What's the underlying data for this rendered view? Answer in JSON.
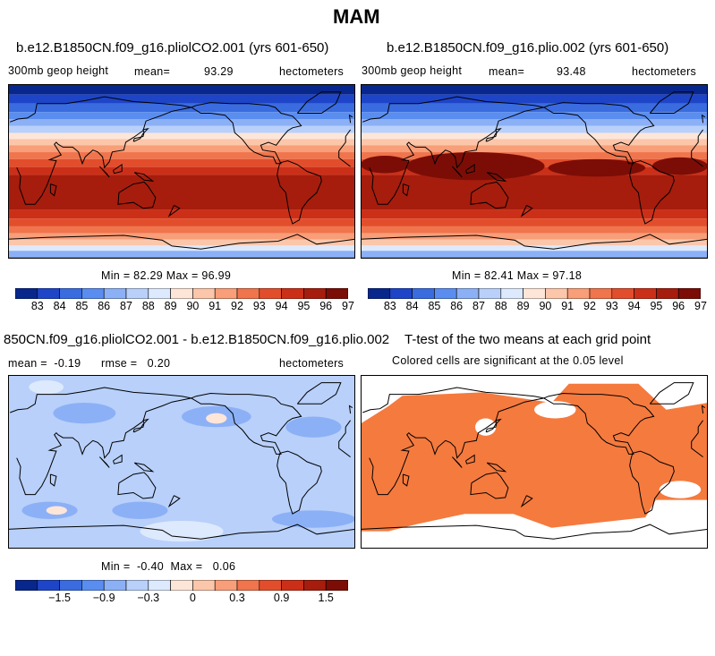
{
  "figure": {
    "title": "MAM"
  },
  "colors": {
    "ramp": [
      "#08278c",
      "#1e45c8",
      "#3a6ce0",
      "#5a8df0",
      "#8cb0f6",
      "#b8d0fa",
      "#dde9fc",
      "#fde6d8",
      "#fcc6aa",
      "#f89e78",
      "#f0744c",
      "#e24e2c",
      "#cc2f18",
      "#a61d0d",
      "#7c0d06"
    ],
    "land": "none",
    "coast": "#000000",
    "signif": "#f57a3e"
  },
  "panels": [
    {
      "title": "b.e12.B1850CN.f09_g16.pliolCO2.001 (yrs 601-650)",
      "variable": "300mb geop height",
      "mean_label": "mean=",
      "mean_value": "93.29",
      "units": "hectometers",
      "minmax": "Min =  82.29  Max =  96.99"
    },
    {
      "title": "b.e12.B1850CN.f09_g16.plio.002 (yrs 601-650)",
      "variable": "300mb geop height",
      "mean_label": "mean=",
      "mean_value": "93.48",
      "units": "hectometers",
      "minmax": "Min =  82.41  Max =  97.18"
    },
    {
      "title": "850CN.f09_g16.pliolCO2.001 - b.e12.B1850CN.f09_g16.plio.002",
      "stat_line": "mean =  -0.19      rmse =   0.20",
      "units": "hectometers",
      "minmax": "Min =  -0.40  Max =   0.06"
    },
    {
      "title": "T-test of the two means at each grid point",
      "subtitle": "Colored cells are significant at the 0.05 level"
    }
  ],
  "chart_data": [
    {
      "type": "heatmap",
      "panel": "upper-left",
      "field": "300mb geopotential height",
      "units": "hectometers",
      "mean": 93.29,
      "min": 82.29,
      "max": 96.99,
      "colorbar_ticks": [
        "83",
        "84",
        "85",
        "86",
        "87",
        "88",
        "89",
        "90",
        "91",
        "92",
        "93",
        "94",
        "95",
        "96",
        "97"
      ],
      "levels": [
        83,
        84,
        85,
        86,
        87,
        88,
        89,
        90,
        91,
        92,
        93,
        94,
        95,
        96,
        97
      ]
    },
    {
      "type": "heatmap",
      "panel": "upper-right",
      "field": "300mb geopotential height",
      "units": "hectometers",
      "mean": 93.48,
      "min": 82.41,
      "max": 97.18,
      "colorbar_ticks": [
        "83",
        "84",
        "85",
        "86",
        "87",
        "88",
        "89",
        "90",
        "91",
        "92",
        "93",
        "94",
        "95",
        "96",
        "97"
      ],
      "levels": [
        83,
        84,
        85,
        86,
        87,
        88,
        89,
        90,
        91,
        92,
        93,
        94,
        95,
        96,
        97
      ]
    },
    {
      "type": "heatmap",
      "panel": "lower-left",
      "field": "difference",
      "units": "hectometers",
      "mean": -0.19,
      "rmse": 0.2,
      "min": -0.4,
      "max": 0.06,
      "colorbar_ticks": [
        "−1.5",
        "−0.9",
        "−0.3",
        "0",
        "0.3",
        "0.9",
        "1.5"
      ],
      "levels": [
        -1.8,
        -1.5,
        -1.2,
        -0.9,
        -0.6,
        -0.3,
        -0.1,
        0,
        0.1,
        0.3,
        0.6,
        0.9,
        1.2,
        1.5,
        1.8
      ]
    },
    {
      "type": "heatmap",
      "panel": "lower-right",
      "field": "t-test significance",
      "significance_level": 0.05
    }
  ]
}
